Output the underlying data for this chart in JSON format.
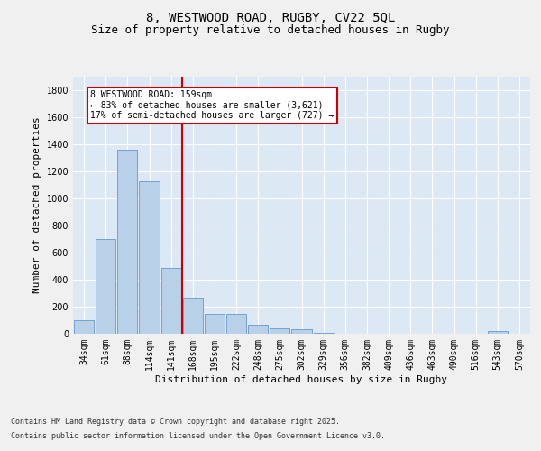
{
  "title_line1": "8, WESTWOOD ROAD, RUGBY, CV22 5QL",
  "title_line2": "Size of property relative to detached houses in Rugby",
  "xlabel": "Distribution of detached houses by size in Rugby",
  "ylabel": "Number of detached properties",
  "categories": [
    "34sqm",
    "61sqm",
    "88sqm",
    "114sqm",
    "141sqm",
    "168sqm",
    "195sqm",
    "222sqm",
    "248sqm",
    "275sqm",
    "302sqm",
    "329sqm",
    "356sqm",
    "382sqm",
    "409sqm",
    "436sqm",
    "463sqm",
    "490sqm",
    "516sqm",
    "543sqm",
    "570sqm"
  ],
  "values": [
    100,
    700,
    1360,
    1130,
    490,
    270,
    145,
    145,
    70,
    40,
    35,
    10,
    0,
    0,
    0,
    0,
    0,
    0,
    0,
    20,
    0
  ],
  "bar_color": "#b8d0e8",
  "bar_edge_color": "#6699cc",
  "vline_x": 4.5,
  "vline_color": "#cc0000",
  "annotation_title": "8 WESTWOOD ROAD: 159sqm",
  "annotation_line1": "← 83% of detached houses are smaller (3,621)",
  "annotation_line2": "17% of semi-detached houses are larger (727) →",
  "annotation_box_color": "#cc0000",
  "annotation_bg": "#ffffff",
  "ylim": [
    0,
    1900
  ],
  "yticks": [
    0,
    200,
    400,
    600,
    800,
    1000,
    1200,
    1400,
    1600,
    1800
  ],
  "background_color": "#dde8f5",
  "grid_color": "#ffffff",
  "fig_bg_color": "#f0f0f0",
  "footer_line1": "Contains HM Land Registry data © Crown copyright and database right 2025.",
  "footer_line2": "Contains public sector information licensed under the Open Government Licence v3.0.",
  "title_fontsize": 10,
  "subtitle_fontsize": 9,
  "axis_label_fontsize": 8,
  "tick_fontsize": 7,
  "footer_fontsize": 6
}
